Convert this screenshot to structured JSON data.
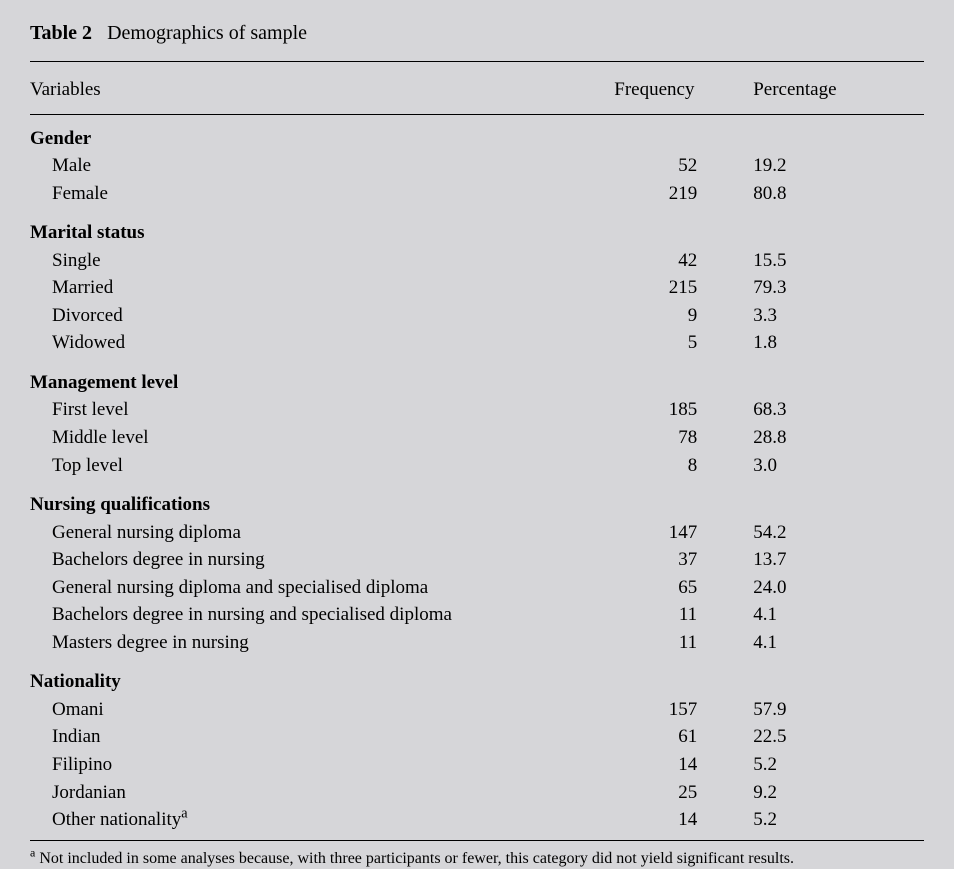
{
  "title": {
    "label": "Table 2",
    "caption": "Demographics of sample"
  },
  "columns": {
    "variables": "Variables",
    "frequency": "Frequency",
    "percentage": "Percentage"
  },
  "groups": [
    {
      "name": "Gender",
      "rows": [
        {
          "label": "Male",
          "frequency": "52",
          "percentage": "19.2"
        },
        {
          "label": "Female",
          "frequency": "219",
          "percentage": "80.8"
        }
      ]
    },
    {
      "name": "Marital status",
      "rows": [
        {
          "label": "Single",
          "frequency": "42",
          "percentage": "15.5"
        },
        {
          "label": "Married",
          "frequency": "215",
          "percentage": "79.3"
        },
        {
          "label": "Divorced",
          "frequency": "9",
          "percentage": "3.3"
        },
        {
          "label": "Widowed",
          "frequency": "5",
          "percentage": "1.8"
        }
      ]
    },
    {
      "name": "Management level",
      "rows": [
        {
          "label": "First level",
          "frequency": "185",
          "percentage": "68.3"
        },
        {
          "label": "Middle level",
          "frequency": "78",
          "percentage": "28.8"
        },
        {
          "label": "Top level",
          "frequency": "8",
          "percentage": "3.0"
        }
      ]
    },
    {
      "name": "Nursing qualifications",
      "rows": [
        {
          "label": "General nursing diploma",
          "frequency": "147",
          "percentage": "54.2"
        },
        {
          "label": "Bachelors degree in nursing",
          "frequency": "37",
          "percentage": "13.7"
        },
        {
          "label": "General nursing diploma and specialised diploma",
          "frequency": "65",
          "percentage": "24.0"
        },
        {
          "label": "Bachelors degree in nursing and specialised diploma",
          "frequency": "11",
          "percentage": "4.1"
        },
        {
          "label": "Masters degree in nursing",
          "frequency": "11",
          "percentage": "4.1"
        }
      ]
    },
    {
      "name": "Nationality",
      "rows": [
        {
          "label": "Omani",
          "frequency": "157",
          "percentage": "57.9"
        },
        {
          "label": "Indian",
          "frequency": "61",
          "percentage": "22.5"
        },
        {
          "label": "Filipino",
          "frequency": "14",
          "percentage": "5.2"
        },
        {
          "label": "Jordanian",
          "frequency": "25",
          "percentage": "9.2"
        },
        {
          "label": "Other nationality",
          "sup": "a",
          "frequency": "14",
          "percentage": "5.2"
        }
      ]
    }
  ],
  "footnote": {
    "marker": "a",
    "text": " Not included in some analyses because, with three participants or fewer, this category did not yield significant results."
  }
}
